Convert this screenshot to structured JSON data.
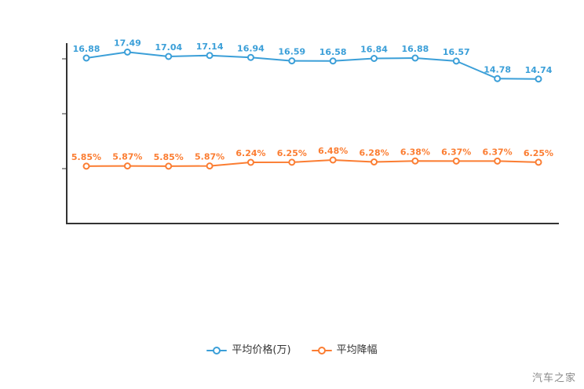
{
  "watermark": {
    "text": "汽车之家"
  },
  "legend": {
    "items": [
      {
        "label": "平均价格(万)"
      },
      {
        "label": "平均降幅"
      }
    ]
  },
  "chart_data": {
    "type": "line",
    "title": "",
    "xlabel": "",
    "ylabel": "",
    "ylim": [
      0,
      20
    ],
    "grid": false,
    "legend_position": "bottom",
    "x_tick_labels_visible": false,
    "series": [
      {
        "name": "平均价格(万)",
        "color": "#3b9fd8",
        "values": [
          16.88,
          17.49,
          17.04,
          17.14,
          16.94,
          16.59,
          16.58,
          16.84,
          16.88,
          16.57,
          14.78,
          14.74
        ],
        "labels": [
          "16.88",
          "17.49",
          "17.04",
          "17.14",
          "16.94",
          "16.59",
          "16.58",
          "16.84",
          "16.88",
          "16.57",
          "14.78",
          "14.74"
        ]
      },
      {
        "name": "平均降幅",
        "color": "#fb7d32",
        "values": [
          5.85,
          5.87,
          5.85,
          5.87,
          6.24,
          6.25,
          6.48,
          6.28,
          6.38,
          6.37,
          6.37,
          6.25
        ],
        "labels": [
          "5.85%",
          "5.87%",
          "5.85%",
          "5.87%",
          "6.24%",
          "6.25%",
          "6.48%",
          "6.28%",
          "6.38%",
          "6.37%",
          "6.37%",
          "6.25%"
        ]
      }
    ],
    "axis_color": "#333333"
  }
}
